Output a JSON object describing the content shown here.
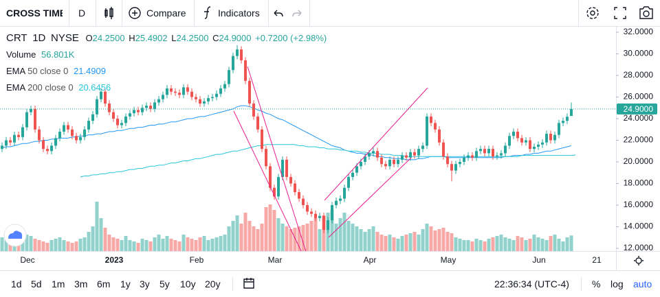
{
  "toolbar": {
    "symbol": "CROSS TIME",
    "interval": "D",
    "compare": "Compare",
    "indicators": "Indicators"
  },
  "legend": {
    "ticker": "CRT",
    "interval": "1D",
    "exchange": "NYSE",
    "o_label": "O",
    "o_value": "24.2500",
    "h_label": "H",
    "h_value": "25.4902",
    "l_label": "L",
    "l_value": "24.2500",
    "c_label": "C",
    "c_value": "24.9000",
    "change": "+0.7200 (+2.98%)",
    "volume_label": "Volume",
    "volume_value": "56.801K",
    "ema50_name": "EMA",
    "ema50_params": "50 close 0",
    "ema50_value": "21.4909",
    "ema200_name": "EMA",
    "ema200_params": "200 close 0",
    "ema200_value": "20.6456"
  },
  "chart_data": {
    "type": "candlestick",
    "open": [
      21.2,
      21.5,
      22.0,
      21.8,
      22.5,
      22.3,
      23.2,
      24.6,
      24.9,
      23.0,
      22.0,
      21.2,
      21.0,
      21.5,
      22.2,
      22.8,
      23.4,
      23.0,
      22.4,
      22.0,
      22.3,
      23.0,
      23.8,
      24.4,
      25.8,
      26.5,
      25.4,
      24.6,
      24.0,
      23.4,
      23.6,
      24.2,
      24.5,
      24.8,
      24.6,
      25.0,
      25.2,
      24.9,
      25.5,
      25.8,
      26.2,
      26.8,
      26.5,
      26.4,
      26.2,
      26.9,
      26.5,
      26.0,
      25.8,
      25.4,
      25.6,
      25.9,
      26.0,
      26.3,
      26.8,
      27.2,
      28.5,
      29.8,
      30.4,
      29.4,
      27.5,
      25.4,
      24.2,
      23.0,
      21.2,
      19.6,
      17.6,
      16.8,
      18.6,
      20.2,
      18.6,
      18.0,
      17.2,
      16.6,
      16.0,
      15.4,
      15.2,
      14.8,
      15.0,
      13.7,
      14.6,
      16.0,
      16.4,
      16.6,
      17.6,
      18.6,
      19.0,
      19.6,
      20.0,
      20.5,
      20.8,
      21.0,
      20.4,
      19.8,
      19.6,
      20.2,
      19.8,
      20.2,
      20.6,
      20.4,
      20.9,
      20.6,
      21.2,
      21.5,
      24.2,
      23.6,
      23.0,
      21.8,
      20.5,
      19.8,
      19.2,
      19.8,
      20.0,
      20.4,
      20.6,
      20.4,
      21.0,
      21.2,
      20.8,
      21.2,
      20.5,
      20.6,
      20.8,
      21.5,
      22.4,
      22.8,
      22.2,
      21.8,
      22.0,
      21.2,
      21.4,
      21.6,
      21.8,
      22.6,
      22.0,
      22.5,
      23.6,
      23.8,
      24.25
    ],
    "high": [
      21.8,
      22.3,
      22.3,
      22.8,
      22.8,
      23.5,
      24.9,
      25.2,
      25.2,
      23.3,
      22.3,
      21.5,
      21.8,
      22.5,
      23.1,
      23.7,
      23.7,
      23.3,
      22.7,
      22.6,
      23.3,
      24.1,
      24.7,
      26.1,
      26.8,
      26.8,
      25.7,
      24.9,
      24.3,
      23.9,
      24.5,
      24.8,
      25.1,
      25.1,
      25.3,
      25.5,
      25.5,
      25.8,
      26.1,
      26.5,
      27.1,
      27.1,
      26.8,
      26.7,
      27.2,
      27.2,
      26.8,
      26.3,
      26.1,
      25.9,
      26.2,
      26.3,
      26.6,
      27.1,
      27.5,
      28.8,
      30.1,
      30.8,
      30.7,
      29.7,
      27.8,
      25.7,
      24.5,
      23.3,
      21.5,
      19.9,
      17.9,
      18.9,
      20.5,
      20.5,
      18.9,
      18.3,
      17.5,
      16.9,
      16.3,
      15.7,
      15.5,
      15.3,
      15.3,
      14.9,
      16.3,
      16.7,
      16.9,
      17.9,
      18.9,
      19.3,
      19.9,
      20.3,
      20.8,
      21.1,
      21.3,
      21.3,
      20.7,
      20.1,
      20.5,
      20.5,
      20.5,
      20.9,
      20.9,
      21.2,
      21.2,
      21.5,
      21.8,
      24.5,
      24.5,
      23.9,
      23.3,
      22.1,
      20.8,
      20.1,
      20.1,
      20.3,
      20.7,
      20.9,
      20.9,
      21.3,
      21.5,
      21.5,
      21.5,
      21.5,
      20.9,
      21.1,
      21.8,
      22.7,
      23.1,
      23.1,
      22.5,
      22.3,
      22.3,
      21.7,
      21.9,
      22.1,
      22.9,
      22.9,
      22.8,
      23.9,
      24.1,
      24.5,
      25.4902
    ],
    "low": [
      20.9,
      21.2,
      21.5,
      21.5,
      22.0,
      22.0,
      22.9,
      24.3,
      22.7,
      21.7,
      20.9,
      20.7,
      20.7,
      21.2,
      21.9,
      22.5,
      22.7,
      22.1,
      21.7,
      21.7,
      22.0,
      22.7,
      23.5,
      24.1,
      25.5,
      25.1,
      24.3,
      23.7,
      23.1,
      23.1,
      23.3,
      23.9,
      24.2,
      24.3,
      24.3,
      24.7,
      24.6,
      24.6,
      25.2,
      25.5,
      25.9,
      26.2,
      26.1,
      25.9,
      25.9,
      26.2,
      25.7,
      25.5,
      25.1,
      25.1,
      25.3,
      25.6,
      25.7,
      26.0,
      26.5,
      26.9,
      28.2,
      29.5,
      29.1,
      27.2,
      25.1,
      23.9,
      22.7,
      20.9,
      19.3,
      17.3,
      16.5,
      16.5,
      18.3,
      18.3,
      17.7,
      16.9,
      16.3,
      15.7,
      15.1,
      14.9,
      14.5,
      14.5,
      13.4,
      13.4,
      14.3,
      15.7,
      16.1,
      16.3,
      17.3,
      18.3,
      18.7,
      19.3,
      19.7,
      20.2,
      20.5,
      20.1,
      19.5,
      19.3,
      19.3,
      19.5,
      19.5,
      19.9,
      20.1,
      20.1,
      20.3,
      20.3,
      20.9,
      21.2,
      23.3,
      22.7,
      21.5,
      20.2,
      19.5,
      18.2,
      18.9,
      19.5,
      19.7,
      20.1,
      20.1,
      20.1,
      20.7,
      20.5,
      20.5,
      20.2,
      20.2,
      20.3,
      20.5,
      21.2,
      22.1,
      21.9,
      21.5,
      21.5,
      20.9,
      20.9,
      21.1,
      21.3,
      21.5,
      21.7,
      21.7,
      22.2,
      23.3,
      23.5,
      24.25
    ],
    "close": [
      21.5,
      22.0,
      21.8,
      22.5,
      22.3,
      23.2,
      24.6,
      24.9,
      23.0,
      22.0,
      21.2,
      21.0,
      21.5,
      22.2,
      22.8,
      23.4,
      23.0,
      22.4,
      22.0,
      22.3,
      23.0,
      23.8,
      24.4,
      25.8,
      26.5,
      25.4,
      24.6,
      24.0,
      23.4,
      23.6,
      24.2,
      24.5,
      24.8,
      24.6,
      25.0,
      25.2,
      24.9,
      25.5,
      25.8,
      26.2,
      26.8,
      26.5,
      26.4,
      26.2,
      26.9,
      26.5,
      26.0,
      25.8,
      25.4,
      25.6,
      25.9,
      26.0,
      26.3,
      26.8,
      27.2,
      28.5,
      29.8,
      30.4,
      29.4,
      27.5,
      25.4,
      24.2,
      23.0,
      21.2,
      19.6,
      17.6,
      16.8,
      18.6,
      20.2,
      18.6,
      18.0,
      17.2,
      16.6,
      16.0,
      15.4,
      15.2,
      14.8,
      15.0,
      13.7,
      14.6,
      16.0,
      16.4,
      16.6,
      17.6,
      18.6,
      19.0,
      19.6,
      20.0,
      20.5,
      20.8,
      21.0,
      20.4,
      19.8,
      19.6,
      20.2,
      19.8,
      20.2,
      20.6,
      20.4,
      20.9,
      20.6,
      21.2,
      21.5,
      24.2,
      23.6,
      23.0,
      21.8,
      20.5,
      19.8,
      19.2,
      19.8,
      20.0,
      20.4,
      20.6,
      20.4,
      21.0,
      21.2,
      20.8,
      21.2,
      20.5,
      20.6,
      20.8,
      21.5,
      22.4,
      22.8,
      22.2,
      21.8,
      22.0,
      21.2,
      21.4,
      21.6,
      21.8,
      22.6,
      22.0,
      22.5,
      23.6,
      23.8,
      24.18,
      24.9
    ],
    "volume": [
      50,
      40,
      30,
      35,
      30,
      40,
      60,
      55,
      45,
      40,
      35,
      30,
      40,
      45,
      50,
      40,
      35,
      30,
      35,
      45,
      50,
      70,
      90,
      180,
      120,
      85,
      60,
      50,
      45,
      40,
      55,
      40,
      35,
      30,
      45,
      40,
      35,
      50,
      60,
      45,
      55,
      45,
      40,
      35,
      60,
      50,
      45,
      40,
      50,
      55,
      40,
      45,
      50,
      55,
      60,
      90,
      110,
      130,
      100,
      140,
      110,
      90,
      80,
      100,
      160,
      170,
      150,
      120,
      100,
      90,
      80,
      85,
      90,
      95,
      100,
      110,
      120,
      80,
      130,
      140,
      150,
      100,
      120,
      140,
      110,
      100,
      90,
      80,
      70,
      80,
      90,
      70,
      60,
      55,
      60,
      50,
      45,
      55,
      60,
      65,
      70,
      60,
      80,
      100,
      90,
      75,
      80,
      85,
      70,
      65,
      50,
      45,
      40,
      40,
      35,
      45,
      40,
      35,
      45,
      50,
      55,
      60,
      50,
      45,
      40,
      55,
      50,
      40,
      45,
      60,
      50,
      45,
      40,
      55,
      60,
      45,
      35,
      50,
      56.801
    ],
    "series": [
      {
        "name": "EMA 50",
        "color": "#2196f3",
        "values": [
          21.3,
          21.4,
          21.4,
          21.5,
          21.6,
          21.7,
          21.7,
          21.8,
          21.9,
          21.9,
          22.0,
          22.0,
          22.1,
          22.1,
          22.2,
          22.2,
          22.2,
          22.3,
          22.3,
          22.4,
          22.4,
          22.5,
          22.5,
          22.6,
          22.6,
          22.7,
          22.8,
          22.8,
          22.9,
          22.9,
          23.0,
          23.1,
          23.1,
          23.2,
          23.2,
          23.3,
          23.4,
          23.4,
          23.5,
          23.5,
          23.6,
          23.7,
          23.7,
          23.8,
          23.9,
          24.0,
          24.0,
          24.1,
          24.2,
          24.2,
          24.3,
          24.4,
          24.5,
          24.6,
          24.7,
          24.8,
          24.9,
          25.1,
          25.2,
          25.2,
          25.1,
          25.0,
          24.8,
          24.7,
          24.5,
          24.4,
          24.2,
          24.0,
          23.9,
          23.7,
          23.5,
          23.3,
          23.1,
          22.9,
          22.7,
          22.5,
          22.3,
          22.1,
          21.9,
          21.7,
          21.5,
          21.4,
          21.3,
          21.1,
          21.0,
          20.9,
          20.8,
          20.8,
          20.7,
          20.7,
          20.6,
          20.5,
          20.5,
          20.4,
          20.4,
          20.3,
          20.3,
          20.3,
          20.2,
          20.2,
          20.2,
          20.3,
          20.3,
          20.4,
          20.5,
          20.5,
          20.5,
          20.5,
          20.4,
          20.4,
          20.4,
          20.4,
          20.4,
          20.4,
          20.4,
          20.4,
          20.4,
          20.4,
          20.4,
          20.4,
          20.4,
          20.4,
          20.5,
          20.5,
          20.6,
          20.6,
          20.6,
          20.7,
          20.7,
          20.8,
          20.8,
          20.9,
          21.0,
          21.0,
          21.1,
          21.2,
          21.3,
          21.4,
          21.4909
        ]
      },
      {
        "name": "EMA 200",
        "color": "#26c6da",
        "values": [
          null,
          null,
          null,
          null,
          null,
          null,
          null,
          null,
          null,
          null,
          null,
          null,
          null,
          null,
          null,
          null,
          null,
          null,
          null,
          18.6,
          18.7,
          18.7,
          18.8,
          18.8,
          18.9,
          18.9,
          19.0,
          19.0,
          19.1,
          19.1,
          19.2,
          19.3,
          19.3,
          19.4,
          19.4,
          19.5,
          19.6,
          19.6,
          19.7,
          19.7,
          19.8,
          19.9,
          19.9,
          20.0,
          20.1,
          20.1,
          20.2,
          20.3,
          20.3,
          20.4,
          20.5,
          20.6,
          20.7,
          20.7,
          20.8,
          20.9,
          21.0,
          21.0,
          21.1,
          21.2,
          21.3,
          21.4,
          21.5,
          21.5,
          21.6,
          21.6,
          21.6,
          21.6,
          21.6,
          21.6,
          21.6,
          21.6,
          21.5,
          21.5,
          21.4,
          21.4,
          21.4,
          21.3,
          21.3,
          21.2,
          21.2,
          21.2,
          21.1,
          21.1,
          21.0,
          21.0,
          21.0,
          20.9,
          20.9,
          20.8,
          20.8,
          20.8,
          20.7,
          20.7,
          20.7,
          20.6,
          20.6,
          20.6,
          20.5,
          20.5,
          20.5,
          20.5,
          20.5,
          20.5,
          20.5,
          20.5,
          20.5,
          20.5,
          20.5,
          20.5,
          20.5,
          20.5,
          20.5,
          20.5,
          20.5,
          20.5,
          20.5,
          20.5,
          20.5,
          20.5,
          20.5,
          20.5,
          20.5,
          20.5,
          20.5,
          20.5,
          20.6,
          20.6,
          20.6,
          20.6,
          20.6,
          20.6,
          20.6,
          20.6,
          20.6,
          20.6,
          20.6,
          20.6,
          20.6,
          20.6456
        ]
      }
    ],
    "up_color": "#26a69a",
    "down_color": "#ef5350",
    "ylim": [
      11.75,
      32.57
    ],
    "yticks": [
      {
        "value": 32,
        "label": "32.0000"
      },
      {
        "value": 30,
        "label": "30.0000"
      },
      {
        "value": 28,
        "label": "28.0000"
      },
      {
        "value": 26,
        "label": "26.0000"
      },
      {
        "value": 24,
        "label": "24.0000"
      },
      {
        "value": 22,
        "label": "22.0000"
      },
      {
        "value": 20,
        "label": "20.0000"
      },
      {
        "value": 18,
        "label": "18.0000"
      },
      {
        "value": 16,
        "label": "16.0000"
      },
      {
        "value": 14,
        "label": "14.0000"
      },
      {
        "value": 12,
        "label": "12.0000"
      }
    ],
    "last_price": {
      "value": 24.9,
      "label": "24.9000"
    },
    "x_labels": [
      "Dec",
      "2023",
      "Feb",
      "Mar",
      "Apr",
      "May",
      "Jun",
      "21"
    ]
  },
  "footer": {
    "ranges": [
      "1d",
      "5d",
      "1m",
      "3m",
      "6m",
      "1y",
      "3y",
      "5y",
      "10y",
      "20y"
    ],
    "clock": "22:36:34 (UTC-4)",
    "percent": "%",
    "log": "log",
    "auto": "auto"
  }
}
